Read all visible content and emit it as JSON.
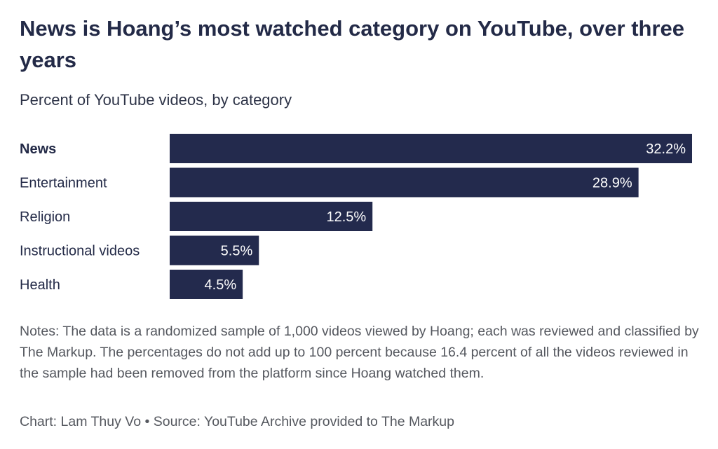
{
  "header": {
    "title": "News is Hoang’s most watched category on YouTube, over three years",
    "subtitle": "Percent of YouTube videos, by category"
  },
  "footer": {
    "notes": "Notes: The data is a randomized sample of 1,000 videos viewed by Hoang; each was reviewed and classified by The Markup. The percentages do not add up to 100 percent because 16.4 percent of all the videos reviewed in the sample had been removed from the platform since Hoang watched them.",
    "credit": "Chart: Lam Thuy Vo • Source: YouTube Archive provided to The Markup"
  },
  "colors": {
    "bar": "#232a4d",
    "label": "#232a47",
    "value_label": "#ffffff"
  },
  "chart_data": {
    "type": "bar",
    "orientation": "horizontal",
    "title": "News is Hoang’s most watched category on YouTube, over three years",
    "subtitle": "Percent of YouTube videos, by category",
    "categories": [
      "News",
      "Entertainment",
      "Religion",
      "Instructional videos",
      "Health"
    ],
    "values": [
      32.2,
      28.9,
      12.5,
      5.5,
      4.5
    ],
    "data_labels": [
      "32.2%",
      "28.9%",
      "12.5%",
      "5.5%",
      "4.5%"
    ],
    "highlighted_category": "News",
    "xlim": [
      0,
      32.2
    ],
    "grid": false,
    "legend": "none"
  }
}
